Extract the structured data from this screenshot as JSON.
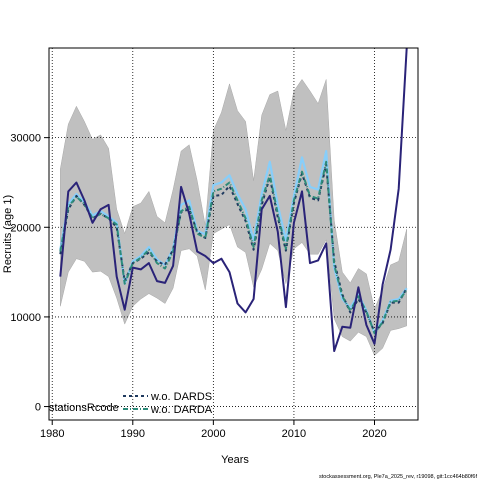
{
  "chart_data": {
    "type": "line",
    "xlabel": "Years",
    "ylabel": "Recruits (age 1)",
    "xlim": [
      1979.6,
      2025.4
    ],
    "ylim": [
      -1500,
      40000
    ],
    "x_ticks": [
      1980,
      1990,
      2000,
      2010,
      2020
    ],
    "y_ticks": [
      0,
      10000,
      20000,
      30000
    ],
    "grid": true,
    "legend": {
      "placement": "bottom-left",
      "title": "stationsRcode",
      "entries": [
        "w.o. DARDS",
        "w.o. DARDA"
      ]
    },
    "source": "stockassessment.org, Ple7a_2025_rev, r19098, git:1cc464b80f6f",
    "x": [
      1981,
      1982,
      1983,
      1984,
      1985,
      1986,
      1987,
      1988,
      1989,
      1990,
      1991,
      1992,
      1993,
      1994,
      1995,
      1996,
      1997,
      1998,
      1999,
      2000,
      2001,
      2002,
      2003,
      2004,
      2005,
      2006,
      2007,
      2008,
      2009,
      2010,
      2011,
      2012,
      2013,
      2014,
      2015,
      2016,
      2017,
      2018,
      2019,
      2020,
      2021,
      2022,
      2023,
      2024
    ],
    "series": [
      {
        "name": "band_upper",
        "values": [
          26500,
          31500,
          33500,
          31800,
          29800,
          30300,
          28800,
          22000,
          19300,
          22300,
          22700,
          24000,
          21200,
          20500,
          24200,
          28500,
          29200,
          25200,
          20200,
          30800,
          32800,
          36000,
          33000,
          31800,
          25200,
          32500,
          34800,
          35200,
          30800,
          35200,
          36500,
          35200,
          33800,
          36500,
          20800,
          15000,
          13800,
          15400,
          14800,
          10900,
          13000,
          15800,
          16200,
          19800
        ]
      },
      {
        "name": "band_lower",
        "values": [
          11200,
          15000,
          16500,
          16200,
          15000,
          15100,
          14500,
          12100,
          9200,
          11200,
          12000,
          12600,
          12100,
          11500,
          13200,
          17400,
          17600,
          16800,
          13000,
          19300,
          19800,
          20300,
          17800,
          17200,
          13300,
          15300,
          18200,
          17400,
          13700,
          17600,
          18300,
          17000,
          17000,
          18600,
          9800,
          7800,
          7300,
          8300,
          7800,
          5700,
          6500,
          8500,
          8700,
          9000
        ]
      },
      {
        "name": "assessment",
        "values": [
          14500,
          24000,
          25000,
          23000,
          20500,
          22000,
          22500,
          14500,
          10800,
          15500,
          15300,
          16000,
          14000,
          13800,
          15700,
          24500,
          21500,
          17300,
          16800,
          16000,
          16500,
          15000,
          11500,
          10500,
          12000,
          22000,
          23500,
          19500,
          11100,
          20500,
          24000,
          16000,
          16300,
          18200,
          6200,
          8900,
          8800,
          13300,
          9100,
          7000,
          13600,
          17500,
          24300,
          40000
        ]
      },
      {
        "name": "w.o. DARDS",
        "values": [
          17000,
          22000,
          23500,
          22500,
          21000,
          21500,
          21000,
          20000,
          14000,
          16000,
          16500,
          17200,
          16200,
          15800,
          17500,
          21700,
          22000,
          19500,
          18800,
          23500,
          23600,
          24600,
          22600,
          20700,
          17500,
          22500,
          25600,
          21100,
          17400,
          22700,
          26000,
          23300,
          23000,
          27000,
          16200,
          12500,
          10500,
          12000,
          10500,
          8300,
          9300,
          11600,
          11600,
          13200
        ]
      },
      {
        "name": "w.o. DARDA",
        "values": [
          17300,
          22300,
          23400,
          22600,
          21000,
          21500,
          21000,
          20300,
          13700,
          16000,
          16600,
          17500,
          16000,
          15400,
          17300,
          21800,
          22300,
          19300,
          18800,
          24000,
          24300,
          25000,
          23000,
          21000,
          17800,
          23000,
          25800,
          21500,
          17600,
          23000,
          26200,
          23500,
          23200,
          27300,
          15800,
          12300,
          10700,
          12300,
          10600,
          8200,
          9400,
          11700,
          11800,
          13000
        ]
      },
      {
        "name": "light_blue",
        "values": [
          17500,
          22600,
          23700,
          22800,
          21300,
          21800,
          21200,
          20500,
          13700,
          16200,
          16800,
          17800,
          16400,
          15800,
          17600,
          22500,
          23000,
          19600,
          19200,
          24700,
          25000,
          25800,
          23700,
          22000,
          18500,
          23700,
          27300,
          22500,
          18500,
          23500,
          27800,
          24500,
          24200,
          28500,
          15500,
          12000,
          11000,
          12500,
          10700,
          8200,
          9600,
          11800,
          12000,
          13200
        ]
      }
    ]
  }
}
